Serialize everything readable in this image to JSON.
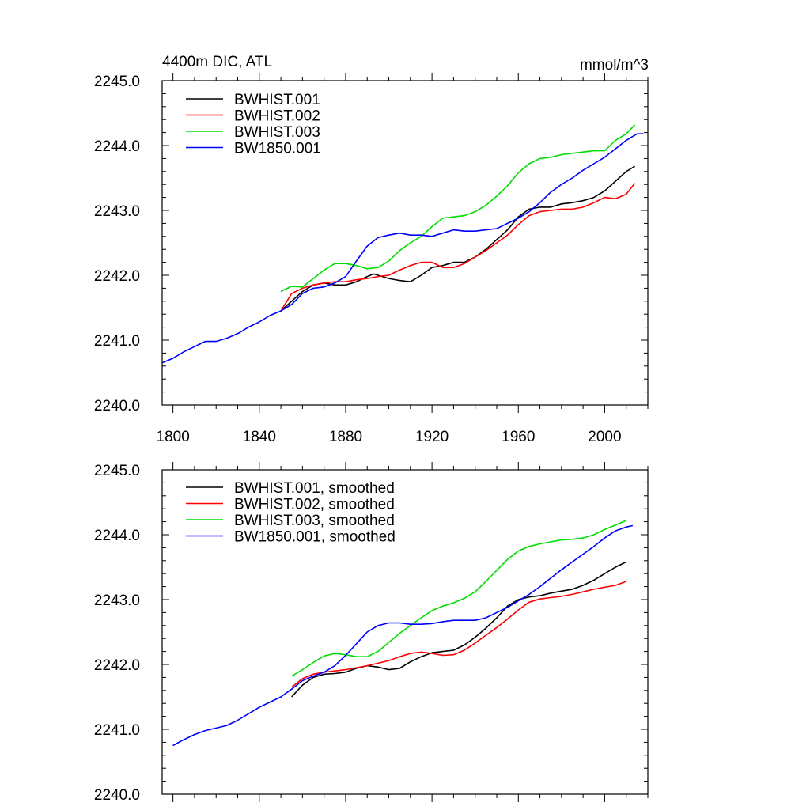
{
  "chart_data": [
    {
      "type": "line",
      "title_left": "4400m DIC, ATL",
      "title_right": "mmol/m^3",
      "xlim": [
        1795,
        2020
      ],
      "ylim": [
        2240.0,
        2245.0
      ],
      "y_ticks": [
        "2240.0",
        "2241.0",
        "2242.0",
        "2243.0",
        "2244.0",
        "2245.0"
      ],
      "x_ticks": [
        "1800",
        "1840",
        "1880",
        "1920",
        "1960",
        "2000"
      ],
      "legend_position": "top-left",
      "series": [
        {
          "name": "BWHIST.001",
          "color": "#000000",
          "x": [
            1850,
            1855,
            1860,
            1865,
            1870,
            1875,
            1880,
            1885,
            1890,
            1893,
            1897,
            1900,
            1905,
            1910,
            1915,
            1920,
            1925,
            1930,
            1935,
            1940,
            1945,
            1950,
            1955,
            1960,
            1965,
            1970,
            1975,
            1980,
            1985,
            1990,
            1995,
            2000,
            2005,
            2010,
            2014
          ],
          "y": [
            2241.45,
            2241.6,
            2241.75,
            2241.85,
            2241.88,
            2241.85,
            2241.85,
            2241.9,
            2241.98,
            2242.02,
            2241.98,
            2241.95,
            2241.92,
            2241.9,
            2242.0,
            2242.12,
            2242.15,
            2242.2,
            2242.2,
            2242.28,
            2242.4,
            2242.55,
            2242.7,
            2242.9,
            2243.02,
            2243.05,
            2243.05,
            2243.1,
            2243.12,
            2243.15,
            2243.2,
            2243.3,
            2243.45,
            2243.6,
            2243.68
          ]
        },
        {
          "name": "BWHIST.002",
          "color": "#ff0000",
          "x": [
            1850,
            1855,
            1860,
            1865,
            1870,
            1875,
            1880,
            1885,
            1890,
            1895,
            1900,
            1905,
            1910,
            1915,
            1920,
            1925,
            1930,
            1935,
            1940,
            1945,
            1950,
            1955,
            1960,
            1965,
            1970,
            1975,
            1980,
            1985,
            1990,
            1995,
            2000,
            2005,
            2010,
            2014
          ],
          "y": [
            2241.45,
            2241.72,
            2241.8,
            2241.85,
            2241.88,
            2241.9,
            2241.9,
            2241.93,
            2241.95,
            2241.98,
            2242.0,
            2242.08,
            2242.15,
            2242.2,
            2242.2,
            2242.12,
            2242.12,
            2242.18,
            2242.28,
            2242.38,
            2242.5,
            2242.62,
            2242.78,
            2242.92,
            2242.98,
            2243.0,
            2243.02,
            2243.02,
            2243.05,
            2243.12,
            2243.2,
            2243.18,
            2243.25,
            2243.42
          ]
        },
        {
          "name": "BWHIST.003",
          "color": "#00dd00",
          "x": [
            1850,
            1855,
            1860,
            1865,
            1870,
            1875,
            1880,
            1885,
            1890,
            1895,
            1900,
            1905,
            1910,
            1915,
            1920,
            1925,
            1930,
            1935,
            1940,
            1945,
            1950,
            1955,
            1960,
            1965,
            1970,
            1975,
            1980,
            1985,
            1990,
            1995,
            2000,
            2005,
            2010,
            2014
          ],
          "y": [
            2241.75,
            2241.83,
            2241.82,
            2241.95,
            2242.08,
            2242.18,
            2242.18,
            2242.15,
            2242.1,
            2242.12,
            2242.22,
            2242.38,
            2242.5,
            2242.6,
            2242.75,
            2242.88,
            2242.9,
            2242.92,
            2242.98,
            2243.08,
            2243.22,
            2243.38,
            2243.58,
            2243.72,
            2243.8,
            2243.82,
            2243.86,
            2243.88,
            2243.9,
            2243.92,
            2243.92,
            2244.08,
            2244.18,
            2244.32
          ]
        },
        {
          "name": "BW1850.001",
          "color": "#0000ff",
          "x": [
            1795,
            1800,
            1805,
            1810,
            1815,
            1820,
            1825,
            1830,
            1835,
            1840,
            1845,
            1850,
            1855,
            1860,
            1865,
            1870,
            1875,
            1880,
            1885,
            1890,
            1895,
            1900,
            1905,
            1910,
            1915,
            1920,
            1925,
            1930,
            1935,
            1940,
            1945,
            1950,
            1955,
            1960,
            1965,
            1970,
            1975,
            1980,
            1985,
            1990,
            1995,
            2000,
            2005,
            2010,
            2015,
            2018
          ],
          "y": [
            2240.65,
            2240.72,
            2240.82,
            2240.9,
            2240.98,
            2240.98,
            2241.03,
            2241.1,
            2241.2,
            2241.28,
            2241.38,
            2241.45,
            2241.55,
            2241.72,
            2241.8,
            2241.82,
            2241.88,
            2241.98,
            2242.22,
            2242.45,
            2242.58,
            2242.62,
            2242.65,
            2242.62,
            2242.62,
            2242.6,
            2242.65,
            2242.7,
            2242.68,
            2242.68,
            2242.7,
            2242.72,
            2242.8,
            2242.88,
            2242.98,
            2243.12,
            2243.28,
            2243.4,
            2243.5,
            2243.62,
            2243.72,
            2243.82,
            2243.95,
            2244.08,
            2244.18,
            2244.18
          ]
        }
      ]
    },
    {
      "type": "line",
      "xlim": [
        1795,
        2020
      ],
      "ylim": [
        2240.0,
        2245.0
      ],
      "y_ticks": [
        "2240.0",
        "2241.0",
        "2242.0",
        "2243.0",
        "2244.0",
        "2245.0"
      ],
      "legend_position": "top-left",
      "series": [
        {
          "name": "BWHIST.001, smoothed",
          "color": "#000000",
          "x": [
            1855,
            1860,
            1865,
            1870,
            1875,
            1880,
            1885,
            1890,
            1895,
            1900,
            1905,
            1910,
            1915,
            1920,
            1925,
            1930,
            1935,
            1940,
            1945,
            1950,
            1955,
            1960,
            1965,
            1970,
            1975,
            1980,
            1985,
            1990,
            1995,
            2000,
            2005,
            2010
          ],
          "y": [
            2241.5,
            2241.68,
            2241.8,
            2241.85,
            2241.86,
            2241.88,
            2241.94,
            2241.98,
            2241.96,
            2241.92,
            2241.94,
            2242.04,
            2242.12,
            2242.18,
            2242.2,
            2242.22,
            2242.3,
            2242.42,
            2242.56,
            2242.72,
            2242.9,
            2243.0,
            2243.04,
            2243.06,
            2243.1,
            2243.13,
            2243.16,
            2243.22,
            2243.3,
            2243.4,
            2243.5,
            2243.58
          ]
        },
        {
          "name": "BWHIST.002, smoothed",
          "color": "#ff0000",
          "x": [
            1855,
            1860,
            1865,
            1870,
            1875,
            1880,
            1885,
            1890,
            1895,
            1900,
            1905,
            1910,
            1915,
            1920,
            1925,
            1930,
            1935,
            1940,
            1945,
            1950,
            1955,
            1960,
            1965,
            1970,
            1975,
            1980,
            1985,
            1990,
            1995,
            2000,
            2005,
            2010
          ],
          "y": [
            2241.65,
            2241.78,
            2241.85,
            2241.88,
            2241.9,
            2241.92,
            2241.95,
            2241.98,
            2242.02,
            2242.06,
            2242.12,
            2242.17,
            2242.19,
            2242.17,
            2242.14,
            2242.15,
            2242.22,
            2242.33,
            2242.45,
            2242.57,
            2242.7,
            2242.84,
            2242.96,
            2243.01,
            2243.03,
            2243.05,
            2243.08,
            2243.12,
            2243.16,
            2243.19,
            2243.22,
            2243.28
          ]
        },
        {
          "name": "BWHIST.003, smoothed",
          "color": "#00dd00",
          "x": [
            1855,
            1860,
            1865,
            1870,
            1875,
            1880,
            1885,
            1890,
            1895,
            1900,
            1905,
            1910,
            1915,
            1920,
            1925,
            1930,
            1935,
            1940,
            1945,
            1950,
            1955,
            1960,
            1965,
            1970,
            1975,
            1980,
            1985,
            1990,
            1995,
            2000,
            2005,
            2010
          ],
          "y": [
            2241.82,
            2241.92,
            2242.03,
            2242.13,
            2242.17,
            2242.15,
            2242.12,
            2242.12,
            2242.2,
            2242.34,
            2242.48,
            2242.6,
            2242.72,
            2242.83,
            2242.9,
            2242.95,
            2243.02,
            2243.12,
            2243.28,
            2243.45,
            2243.62,
            2243.75,
            2243.82,
            2243.86,
            2243.89,
            2243.92,
            2243.93,
            2243.95,
            2244.0,
            2244.08,
            2244.15,
            2244.22
          ]
        },
        {
          "name": "BW1850.001, smoothed",
          "color": "#0000ff",
          "x": [
            1800,
            1805,
            1810,
            1815,
            1820,
            1825,
            1830,
            1835,
            1840,
            1845,
            1850,
            1855,
            1860,
            1865,
            1870,
            1875,
            1880,
            1885,
            1890,
            1895,
            1900,
            1905,
            1910,
            1915,
            1920,
            1925,
            1930,
            1935,
            1940,
            1945,
            1950,
            1955,
            1960,
            1965,
            1970,
            1975,
            1980,
            1985,
            1990,
            1995,
            2000,
            2005,
            2010,
            2013
          ],
          "y": [
            2240.75,
            2240.84,
            2240.92,
            2240.98,
            2241.02,
            2241.06,
            2241.14,
            2241.24,
            2241.34,
            2241.42,
            2241.5,
            2241.62,
            2241.75,
            2241.82,
            2241.88,
            2241.98,
            2242.14,
            2242.32,
            2242.5,
            2242.6,
            2242.64,
            2242.64,
            2242.62,
            2242.62,
            2242.63,
            2242.66,
            2242.68,
            2242.68,
            2242.68,
            2242.72,
            2242.8,
            2242.88,
            2242.98,
            2243.08,
            2243.2,
            2243.33,
            2243.46,
            2243.58,
            2243.7,
            2243.82,
            2243.95,
            2244.06,
            2244.12,
            2244.14
          ]
        }
      ]
    }
  ]
}
